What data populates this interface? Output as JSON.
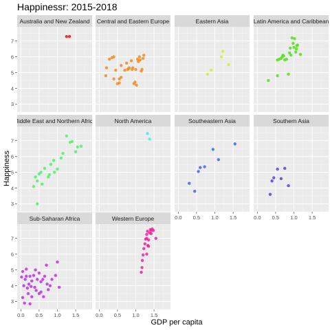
{
  "chart_data": {
    "type": "scatter",
    "title": "Happinessr: 2015-2018",
    "xlabel": "GDP per capita",
    "ylabel": "Happiness",
    "xlim": [
      -0.1,
      1.95
    ],
    "ylim": [
      2.5,
      7.9
    ],
    "x_ticks": [
      0.0,
      0.5,
      1.0,
      1.5
    ],
    "x_tick_labels": [
      "0.0",
      "0.5",
      "1.0",
      "1.5"
    ],
    "y_ticks": [
      3,
      4,
      5,
      6,
      7
    ],
    "y_tick_labels": [
      "3",
      "4",
      "5",
      "6",
      "7"
    ],
    "layout": "facet_wrap 4 columns",
    "grid": true,
    "legend": "none",
    "panel_background": "#ebebeb",
    "strip_background": "#d9d9d9",
    "gridline_color": "#ffffff",
    "panels": [
      {
        "region": "Australia and New Zealand",
        "color": "#e41a1c",
        "points": [
          [
            1.25,
            7.28
          ],
          [
            1.33,
            7.29
          ]
        ]
      },
      {
        "region": "Central and Eastern Europe",
        "color": "#f28c1c",
        "points": [
          [
            0.18,
            4.8
          ],
          [
            0.2,
            5.3
          ],
          [
            0.28,
            5.85
          ],
          [
            0.35,
            5.95
          ],
          [
            0.4,
            6.0
          ],
          [
            0.4,
            4.6
          ],
          [
            0.45,
            5.15
          ],
          [
            0.5,
            4.3
          ],
          [
            0.55,
            4.35
          ],
          [
            0.55,
            4.6
          ],
          [
            0.6,
            5.45
          ],
          [
            0.6,
            4.7
          ],
          [
            0.7,
            5.15
          ],
          [
            0.75,
            5.6
          ],
          [
            0.78,
            5.2
          ],
          [
            0.8,
            5.25
          ],
          [
            0.82,
            5.3
          ],
          [
            0.88,
            5.75
          ],
          [
            0.9,
            5.2
          ],
          [
            0.92,
            5.3
          ],
          [
            0.95,
            4.3
          ],
          [
            0.98,
            4.4
          ],
          [
            1.0,
            5.2
          ],
          [
            1.02,
            4.2
          ],
          [
            1.05,
            5.85
          ],
          [
            1.07,
            5.7
          ],
          [
            1.1,
            6.0
          ],
          [
            1.12,
            5.8
          ],
          [
            1.15,
            5.1
          ],
          [
            1.17,
            5.2
          ],
          [
            1.2,
            5.9
          ],
          [
            1.22,
            6.1
          ]
        ]
      },
      {
        "region": "Eastern Asia",
        "color": "#d4ee2a",
        "points": [
          [
            0.8,
            4.9
          ],
          [
            0.9,
            5.15
          ],
          [
            1.18,
            6.0
          ],
          [
            1.22,
            6.35
          ],
          [
            1.38,
            5.5
          ]
        ]
      },
      {
        "region": "Latin America and Caribbean",
        "color": "#54e11a",
        "points": [
          [
            0.3,
            4.5
          ],
          [
            0.55,
            4.8
          ],
          [
            0.55,
            5.8
          ],
          [
            0.6,
            5.85
          ],
          [
            0.65,
            5.9
          ],
          [
            0.68,
            6.0
          ],
          [
            0.7,
            6.1
          ],
          [
            0.72,
            6.05
          ],
          [
            0.75,
            5.8
          ],
          [
            0.8,
            5.85
          ],
          [
            0.85,
            4.9
          ],
          [
            0.88,
            6.25
          ],
          [
            0.9,
            6.55
          ],
          [
            0.92,
            6.1
          ],
          [
            0.95,
            7.2
          ],
          [
            0.98,
            6.85
          ],
          [
            1.0,
            6.6
          ],
          [
            1.02,
            7.15
          ],
          [
            1.05,
            6.3
          ],
          [
            1.07,
            6.5
          ],
          [
            1.08,
            6.7
          ],
          [
            1.1,
            6.75
          ],
          [
            1.18,
            6.15
          ]
        ]
      },
      {
        "region": "Middle East and Northern Africa",
        "color": "#4df26a",
        "points": [
          [
            0.35,
            4.1
          ],
          [
            0.4,
            4.7
          ],
          [
            0.45,
            4.45
          ],
          [
            0.5,
            4.9
          ],
          [
            0.55,
            5.0
          ],
          [
            0.58,
            4.25
          ],
          [
            0.65,
            5.25
          ],
          [
            0.75,
            4.7
          ],
          [
            0.78,
            4.85
          ],
          [
            0.82,
            5.5
          ],
          [
            0.9,
            5.75
          ],
          [
            0.92,
            5.0
          ],
          [
            1.0,
            5.2
          ],
          [
            1.1,
            5.9
          ],
          [
            1.15,
            6.2
          ],
          [
            1.25,
            7.3
          ],
          [
            1.35,
            6.9
          ],
          [
            1.4,
            6.95
          ],
          [
            1.5,
            6.3
          ],
          [
            1.55,
            6.6
          ],
          [
            1.65,
            6.65
          ],
          [
            0.45,
            3.0
          ]
        ]
      },
      {
        "region": "North America",
        "color": "#3ef0e8",
        "points": [
          [
            1.32,
            7.45
          ],
          [
            1.38,
            7.1
          ]
        ]
      },
      {
        "region": "Southeastern Asia",
        "color": "#3e6ae8",
        "points": [
          [
            0.3,
            4.3
          ],
          [
            0.45,
            3.8
          ],
          [
            0.55,
            5.05
          ],
          [
            0.6,
            5.3
          ],
          [
            0.72,
            5.35
          ],
          [
            0.95,
            6.45
          ],
          [
            1.1,
            5.8
          ],
          [
            1.55,
            6.8
          ]
        ]
      },
      {
        "region": "Southern Asia",
        "color": "#5a3ee8",
        "points": [
          [
            0.35,
            3.6
          ],
          [
            0.4,
            4.45
          ],
          [
            0.45,
            4.65
          ],
          [
            0.55,
            5.2
          ],
          [
            0.65,
            4.6
          ],
          [
            0.75,
            5.25
          ],
          [
            0.85,
            4.15
          ]
        ]
      },
      {
        "region": "Sub-Saharan Africa",
        "color": "#c02ee8",
        "points": [
          [
            0.02,
            4.55
          ],
          [
            0.05,
            3.25
          ],
          [
            0.05,
            4.9
          ],
          [
            0.08,
            4.0
          ],
          [
            0.1,
            2.9
          ],
          [
            0.12,
            4.4
          ],
          [
            0.15,
            5.05
          ],
          [
            0.18,
            3.85
          ],
          [
            0.2,
            3.5
          ],
          [
            0.22,
            4.1
          ],
          [
            0.25,
            4.6
          ],
          [
            0.25,
            2.85
          ],
          [
            0.28,
            3.95
          ],
          [
            0.3,
            4.3
          ],
          [
            0.3,
            3.3
          ],
          [
            0.35,
            4.65
          ],
          [
            0.38,
            3.9
          ],
          [
            0.4,
            5.0
          ],
          [
            0.42,
            3.7
          ],
          [
            0.45,
            4.4
          ],
          [
            0.5,
            3.5
          ],
          [
            0.5,
            4.8
          ],
          [
            0.55,
            4.25
          ],
          [
            0.6,
            4.4
          ],
          [
            0.62,
            3.3
          ],
          [
            0.65,
            4.6
          ],
          [
            0.7,
            5.3
          ],
          [
            0.72,
            4.1
          ],
          [
            0.75,
            3.75
          ],
          [
            0.8,
            4.0
          ],
          [
            0.85,
            4.4
          ],
          [
            0.95,
            4.65
          ],
          [
            1.0,
            5.5
          ],
          [
            1.05,
            3.9
          ],
          [
            0.55,
            3.6
          ],
          [
            0.15,
            4.6
          ]
        ]
      },
      {
        "region": "Western Europe",
        "color": "#f022a0",
        "points": [
          [
            1.15,
            4.85
          ],
          [
            1.17,
            5.15
          ],
          [
            1.18,
            5.6
          ],
          [
            1.2,
            5.95
          ],
          [
            1.22,
            6.35
          ],
          [
            1.25,
            6.65
          ],
          [
            1.27,
            6.95
          ],
          [
            1.3,
            7.0
          ],
          [
            1.3,
            7.25
          ],
          [
            1.32,
            7.45
          ],
          [
            1.33,
            6.55
          ],
          [
            1.35,
            6.9
          ],
          [
            1.38,
            7.35
          ],
          [
            1.4,
            7.55
          ],
          [
            1.42,
            7.5
          ],
          [
            1.45,
            7.6
          ],
          [
            1.48,
            7.5
          ],
          [
            1.55,
            7.0
          ],
          [
            1.3,
            6.0
          ],
          [
            1.35,
            6.5
          ],
          [
            1.42,
            7.3
          ]
        ]
      }
    ]
  }
}
